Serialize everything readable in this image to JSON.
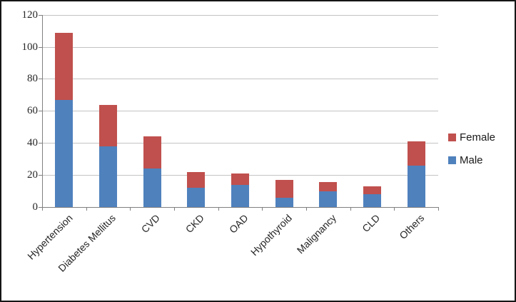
{
  "chart_data": {
    "type": "bar",
    "stacked": true,
    "title": "",
    "xlabel": "",
    "ylabel": "",
    "categories": [
      "Hypertension",
      "Diabetes Mellitus",
      "CVD",
      "CKD",
      "OAD",
      "Hypothyroid",
      "Malignancy",
      "CLD",
      "Others"
    ],
    "series": [
      {
        "name": "Male",
        "color": "#4f81bd",
        "values": [
          67,
          38,
          24,
          12,
          14,
          6,
          10,
          8,
          26
        ]
      },
      {
        "name": "Female",
        "color": "#c0504d",
        "values": [
          42,
          26,
          20,
          10,
          7,
          11,
          6,
          5,
          15
        ]
      }
    ],
    "totals": [
      109,
      64,
      44,
      22,
      21,
      17,
      16,
      13,
      41
    ],
    "ylim": [
      0,
      120
    ],
    "yticks": [
      0,
      20,
      40,
      60,
      80,
      100,
      120
    ],
    "grid": true,
    "legend_position": "right",
    "legend_order_top_to_bottom": [
      "Female",
      "Male"
    ]
  },
  "colors": {
    "male": "#4f81bd",
    "female": "#c0504d",
    "axis": "#808080",
    "gridline": "#c3c3c3",
    "background": "#ffffff",
    "border": "#161616"
  }
}
